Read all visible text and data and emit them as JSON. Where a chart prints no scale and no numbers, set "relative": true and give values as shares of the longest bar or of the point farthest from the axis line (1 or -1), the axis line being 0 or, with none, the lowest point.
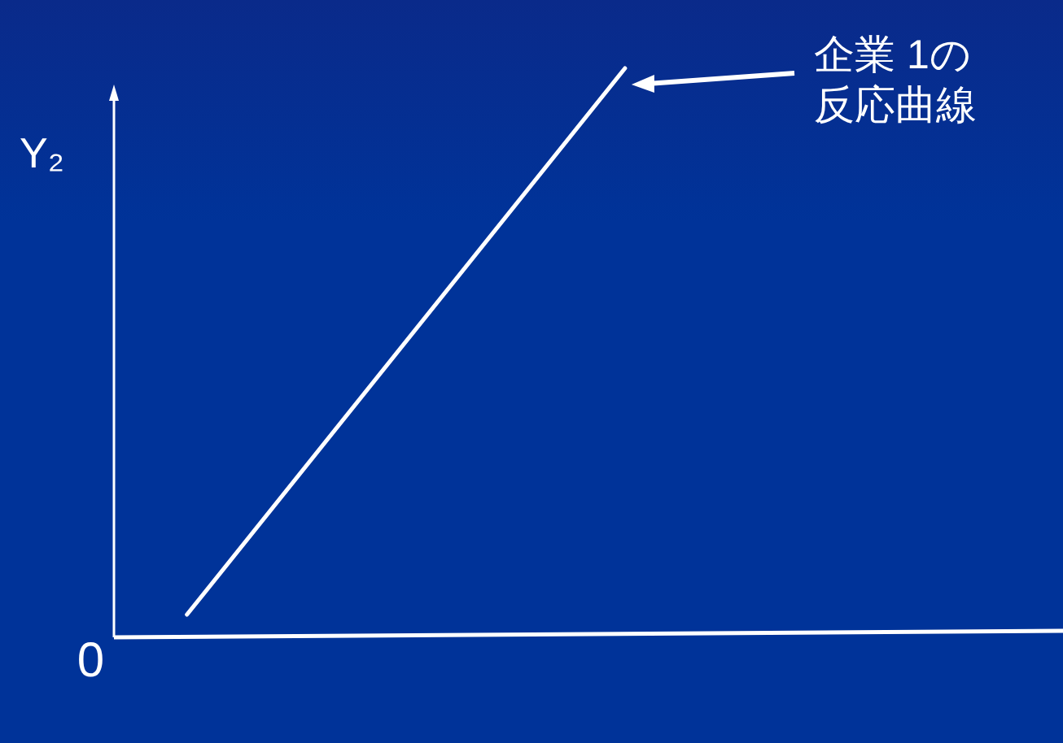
{
  "chart_data": {
    "type": "line",
    "relative": true,
    "categories": [
      null,
      null,
      null,
      null,
      null,
      null,
      null,
      null,
      null,
      null,
      null,
      null,
      null,
      null
    ],
    "values": [
      null,
      0.04,
      null,
      null,
      null,
      null,
      null,
      1,
      null,
      null,
      null,
      null,
      null,
      null
    ],
    "color": "#ffffff",
    "annotations": [
      "企業 1の反応曲線",
      "0",
      "Y₂"
    ]
  }
}
